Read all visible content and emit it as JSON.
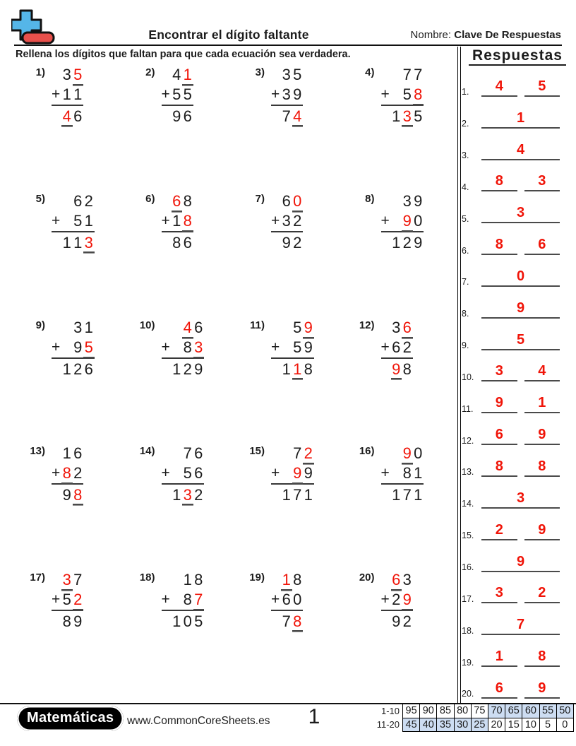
{
  "colors": {
    "accent_red": "#f01408",
    "highlight_blue": "#cdddf2",
    "logo_blue": "#55b6e8",
    "logo_red": "#e8504b"
  },
  "symbols": {
    "plus": "+"
  },
  "header": {
    "title": "Encontrar el dígito faltante",
    "name_label": "Nombre:",
    "name_value": "Clave De Respuestas",
    "instruction": "Rellena los dígitos que faltan para que cada ecuación sea verdadera."
  },
  "answers_panel": {
    "title": "Respuestas",
    "rows": [
      {
        "num": "1.",
        "values": [
          "4",
          "5"
        ]
      },
      {
        "num": "2.",
        "values": [
          "1"
        ]
      },
      {
        "num": "3.",
        "values": [
          "4"
        ]
      },
      {
        "num": "4.",
        "values": [
          "8",
          "3"
        ]
      },
      {
        "num": "5.",
        "values": [
          "3"
        ]
      },
      {
        "num": "6.",
        "values": [
          "8",
          "6"
        ]
      },
      {
        "num": "7.",
        "values": [
          "0"
        ]
      },
      {
        "num": "8.",
        "values": [
          "9"
        ]
      },
      {
        "num": "9.",
        "values": [
          "5"
        ]
      },
      {
        "num": "10.",
        "values": [
          "3",
          "4"
        ]
      },
      {
        "num": "11.",
        "values": [
          "9",
          "1"
        ]
      },
      {
        "num": "12.",
        "values": [
          "6",
          "9"
        ]
      },
      {
        "num": "13.",
        "values": [
          "8",
          "8"
        ]
      },
      {
        "num": "14.",
        "values": [
          "3"
        ]
      },
      {
        "num": "15.",
        "values": [
          "2",
          "9"
        ]
      },
      {
        "num": "16.",
        "values": [
          "9"
        ]
      },
      {
        "num": "17.",
        "values": [
          "3",
          "2"
        ]
      },
      {
        "num": "18.",
        "values": [
          "7"
        ]
      },
      {
        "num": "19.",
        "values": [
          "1",
          "8"
        ]
      },
      {
        "num": "20.",
        "values": [
          "6",
          "9"
        ]
      }
    ]
  },
  "problems": [
    {
      "label": "1)",
      "addend1": "35",
      "addend1_red": [
        1
      ],
      "addend2": "11",
      "addend2_red": [],
      "sum": "46",
      "sum_red": [
        0
      ]
    },
    {
      "label": "2)",
      "addend1": "41",
      "addend1_red": [
        1
      ],
      "addend2": "55",
      "addend2_red": [],
      "sum": "96",
      "sum_red": []
    },
    {
      "label": "3)",
      "addend1": "35",
      "addend1_red": [],
      "addend2": "39",
      "addend2_red": [],
      "sum": "74",
      "sum_red": [
        1
      ]
    },
    {
      "label": "4)",
      "addend1": "77",
      "addend1_red": [],
      "addend2": "58",
      "addend2_red": [
        1
      ],
      "sum": "135",
      "sum_red": [
        1
      ]
    },
    {
      "label": "5)",
      "addend1": "62",
      "addend1_red": [],
      "addend2": "51",
      "addend2_red": [],
      "sum": "113",
      "sum_red": [
        2
      ]
    },
    {
      "label": "6)",
      "addend1": "68",
      "addend1_red": [
        0
      ],
      "addend2": "18",
      "addend2_red": [
        1
      ],
      "sum": "86",
      "sum_red": []
    },
    {
      "label": "7)",
      "addend1": "60",
      "addend1_red": [
        1
      ],
      "addend2": "32",
      "addend2_red": [],
      "sum": "92",
      "sum_red": []
    },
    {
      "label": "8)",
      "addend1": "39",
      "addend1_red": [],
      "addend2": "90",
      "addend2_red": [
        0
      ],
      "sum": "129",
      "sum_red": []
    },
    {
      "label": "9)",
      "addend1": "31",
      "addend1_red": [],
      "addend2": "95",
      "addend2_red": [
        1
      ],
      "sum": "126",
      "sum_red": []
    },
    {
      "label": "10)",
      "addend1": "46",
      "addend1_red": [
        0
      ],
      "addend2": "83",
      "addend2_red": [
        1
      ],
      "sum": "129",
      "sum_red": []
    },
    {
      "label": "11)",
      "addend1": "59",
      "addend1_red": [
        1
      ],
      "addend2": "59",
      "addend2_red": [],
      "sum": "118",
      "sum_red": [
        1
      ]
    },
    {
      "label": "12)",
      "addend1": "36",
      "addend1_red": [
        1
      ],
      "addend2": "62",
      "addend2_red": [],
      "sum": "98",
      "sum_red": [
        0
      ]
    },
    {
      "label": "13)",
      "addend1": "16",
      "addend1_red": [],
      "addend2": "82",
      "addend2_red": [
        0
      ],
      "sum": "98",
      "sum_red": [
        1
      ]
    },
    {
      "label": "14)",
      "addend1": "76",
      "addend1_red": [],
      "addend2": "56",
      "addend2_red": [],
      "sum": "132",
      "sum_red": [
        1
      ]
    },
    {
      "label": "15)",
      "addend1": "72",
      "addend1_red": [
        1
      ],
      "addend2": "99",
      "addend2_red": [
        0
      ],
      "sum": "171",
      "sum_red": []
    },
    {
      "label": "16)",
      "addend1": "90",
      "addend1_red": [
        0
      ],
      "addend2": "81",
      "addend2_red": [],
      "sum": "171",
      "sum_red": []
    },
    {
      "label": "17)",
      "addend1": "37",
      "addend1_red": [
        0
      ],
      "addend2": "52",
      "addend2_red": [
        1
      ],
      "sum": "89",
      "sum_red": []
    },
    {
      "label": "18)",
      "addend1": "18",
      "addend1_red": [],
      "addend2": "87",
      "addend2_red": [
        1
      ],
      "sum": "105",
      "sum_red": []
    },
    {
      "label": "19)",
      "addend1": "18",
      "addend1_red": [
        0
      ],
      "addend2": "60",
      "addend2_red": [],
      "sum": "78",
      "sum_red": [
        1
      ]
    },
    {
      "label": "20)",
      "addend1": "63",
      "addend1_red": [
        0
      ],
      "addend2": "29",
      "addend2_red": [
        1
      ],
      "sum": "92",
      "sum_red": []
    }
  ],
  "footer": {
    "brand": "Matemáticas",
    "website": "www.CommonCoreSheets.es",
    "page_number": "1",
    "score_table": [
      {
        "label": "1-10",
        "values": [
          "95",
          "90",
          "85",
          "80",
          "75",
          "70",
          "65",
          "60",
          "55",
          "50"
        ],
        "highlight": [
          5,
          6,
          7,
          8,
          9
        ]
      },
      {
        "label": "11-20",
        "values": [
          "45",
          "40",
          "35",
          "30",
          "25",
          "20",
          "15",
          "10",
          "5",
          "0"
        ],
        "highlight": [
          0,
          1,
          2,
          3,
          4
        ]
      }
    ]
  }
}
